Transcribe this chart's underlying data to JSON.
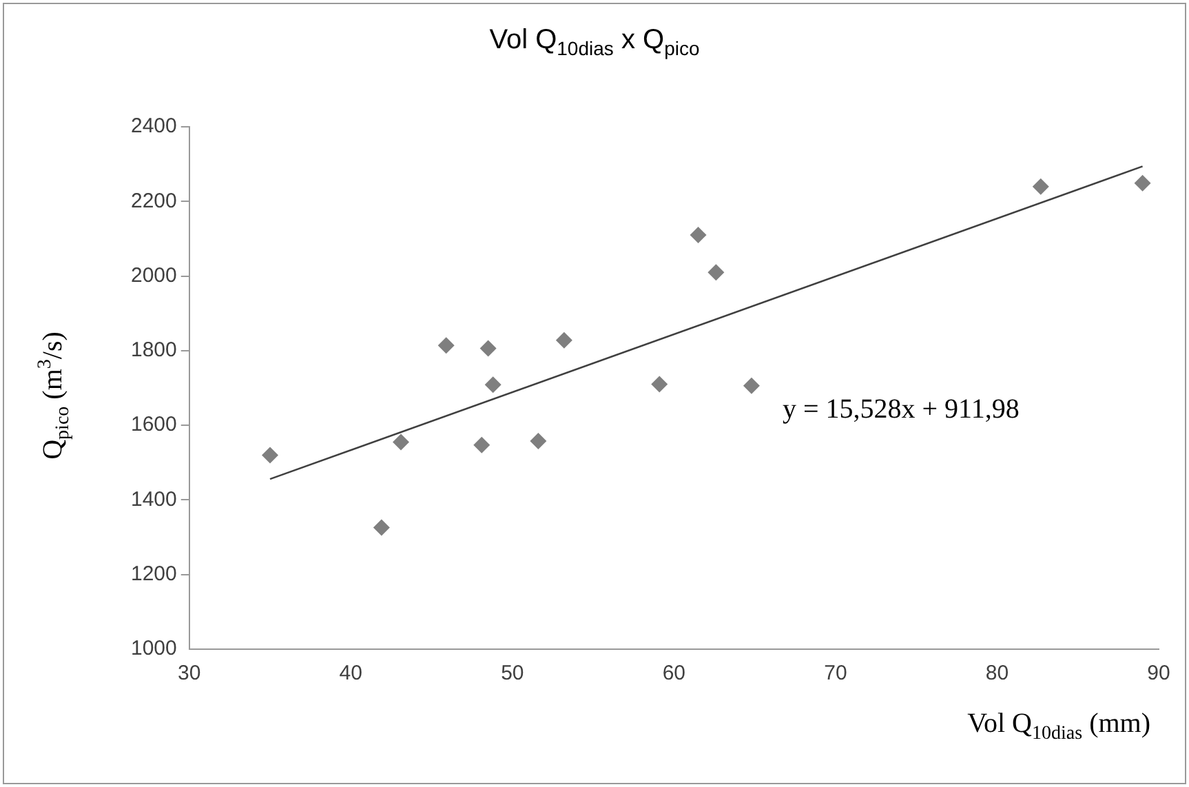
{
  "chart_data": {
    "type": "scatter",
    "title": "Vol Q$_{10dias}$ x Q$_{pico}$",
    "xlabel": "Vol Q$_{10dias}$ (mm)",
    "ylabel": "Q$_{pico}$ (m$^{3}$/s)",
    "xlim": [
      30,
      90
    ],
    "xticks": [
      30,
      40,
      50,
      60,
      70,
      80,
      90
    ],
    "ylim": [
      1000,
      2400
    ],
    "yticks": [
      1000,
      1200,
      1400,
      1600,
      1800,
      2000,
      2200,
      2400
    ],
    "series": [
      {
        "type": "scatter",
        "marker": "diamond",
        "color": "#7f7f7f",
        "x": [
          35.0,
          41.9,
          43.1,
          45.9,
          48.5,
          48.1,
          48.8,
          51.6,
          53.2,
          59.1,
          61.5,
          62.6,
          64.8,
          82.7,
          89.0
        ],
        "values": [
          1520,
          1326,
          1555,
          1814,
          1806,
          1547,
          1709,
          1558,
          1828,
          1710,
          2110,
          2010,
          1706,
          2240,
          2249
        ]
      },
      {
        "type": "line",
        "marker": "none",
        "color": "#404040",
        "x": [
          35.0,
          89.0
        ],
        "values": [
          1456,
          2294
        ]
      }
    ],
    "annotations": [
      "y = 15,528x + 911,98"
    ]
  }
}
